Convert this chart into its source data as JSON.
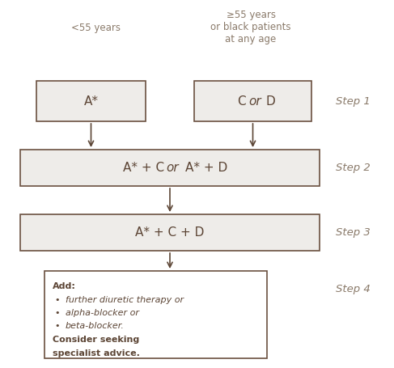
{
  "bg_color": "#ffffff",
  "box_fill": "#eeece9",
  "box_edge": "#6b5040",
  "text_color": "#5c4535",
  "arrow_color": "#5c4535",
  "label_color": "#8a7a6a",
  "header_left": "<55 years",
  "header_right": "≥55 years\nor black patients\nat any age",
  "box1_left_text": "A*",
  "box3_text": "A* + C + D",
  "box4_lines": [
    [
      "bold",
      "Add:"
    ],
    [
      "bullet_italic",
      "further diuretic therapy or"
    ],
    [
      "bullet_italic",
      "alpha-blocker or"
    ],
    [
      "bullet_italic",
      "beta-blocker."
    ],
    [
      "bold",
      "Consider seeking"
    ],
    [
      "bold",
      "specialist advice."
    ]
  ],
  "step_labels": [
    "Step 1",
    "Step 2",
    "Step 3",
    "Step 4"
  ],
  "step_label_fontsize": 9.5
}
